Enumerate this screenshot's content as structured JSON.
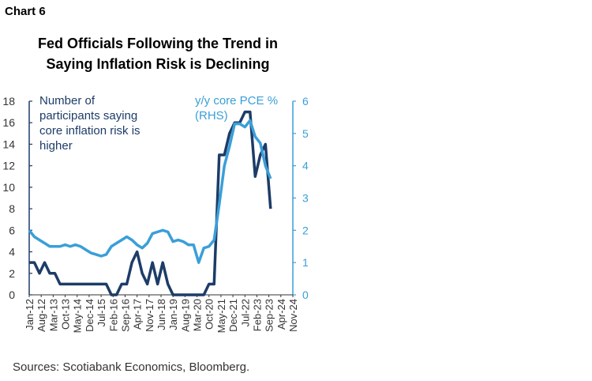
{
  "chart_data": {
    "type": "line",
    "label": "Chart 6",
    "title": "Fed Officials Following the Trend in Saying Inflation Risk is Declining",
    "source": "Sources: Scotiabank Economics, Bloomberg.",
    "x": [
      "2012-01",
      "2012-04",
      "2012-07",
      "2012-10",
      "2013-01",
      "2013-04",
      "2013-07",
      "2013-10",
      "2014-01",
      "2014-04",
      "2014-07",
      "2014-10",
      "2015-01",
      "2015-04",
      "2015-07",
      "2015-10",
      "2016-01",
      "2016-04",
      "2016-07",
      "2016-10",
      "2017-01",
      "2017-04",
      "2017-07",
      "2017-10",
      "2018-01",
      "2018-04",
      "2018-07",
      "2018-10",
      "2019-01",
      "2019-04",
      "2019-07",
      "2019-10",
      "2020-01",
      "2020-04",
      "2020-07",
      "2020-10",
      "2021-01",
      "2021-04",
      "2021-07",
      "2021-10",
      "2022-01",
      "2022-04",
      "2022-07",
      "2022-10",
      "2023-01",
      "2023-04",
      "2023-07",
      "2023-10"
    ],
    "series": [
      {
        "name": "Number of participants saying core inflation risk is higher",
        "color": "#1d3c68",
        "values": [
          3,
          3,
          2,
          3,
          2,
          2,
          1,
          1,
          1,
          1,
          1,
          1,
          1,
          1,
          1,
          1,
          0,
          0,
          1,
          1,
          3,
          4,
          2,
          1,
          3,
          1,
          3,
          1,
          0,
          0,
          0,
          0,
          0,
          0,
          0,
          1,
          1,
          13,
          13,
          15,
          16,
          16,
          17,
          17,
          11,
          13,
          14,
          8
        ]
      },
      {
        "name": "y/y core PCE % (RHS)",
        "color": "#3a9fd8",
        "axis": "y2",
        "values": [
          2.0,
          1.8,
          1.7,
          1.6,
          1.5,
          1.5,
          1.5,
          1.55,
          1.5,
          1.55,
          1.5,
          1.4,
          1.3,
          1.25,
          1.2,
          1.25,
          1.5,
          1.6,
          1.7,
          1.8,
          1.7,
          1.55,
          1.45,
          1.6,
          1.9,
          1.95,
          2.0,
          1.95,
          1.65,
          1.7,
          1.65,
          1.55,
          1.55,
          1.0,
          1.45,
          1.5,
          1.7,
          2.8,
          4.0,
          4.6,
          5.3,
          5.3,
          5.2,
          5.4,
          4.9,
          4.7,
          4.0,
          3.6
        ]
      }
    ],
    "xlim": [
      "2012-01",
      "2024-11"
    ],
    "xticks": [
      {
        "value": "2012-01",
        "label": "Jan-12"
      },
      {
        "value": "2012-08",
        "label": "Aug-12"
      },
      {
        "value": "2013-03",
        "label": "Mar-13"
      },
      {
        "value": "2013-10",
        "label": "Oct-13"
      },
      {
        "value": "2014-05",
        "label": "May-14"
      },
      {
        "value": "2014-12",
        "label": "Dec-14"
      },
      {
        "value": "2015-07",
        "label": "Jul-15"
      },
      {
        "value": "2016-02",
        "label": "Feb-16"
      },
      {
        "value": "2016-09",
        "label": "Sep-16"
      },
      {
        "value": "2017-04",
        "label": "Apr-17"
      },
      {
        "value": "2017-11",
        "label": "Nov-17"
      },
      {
        "value": "2018-06",
        "label": "Jun-18"
      },
      {
        "value": "2019-01",
        "label": "Jan-19"
      },
      {
        "value": "2019-08",
        "label": "Aug-19"
      },
      {
        "value": "2020-03",
        "label": "Mar-20"
      },
      {
        "value": "2020-10",
        "label": "Oct-20"
      },
      {
        "value": "2021-05",
        "label": "May-21"
      },
      {
        "value": "2021-12",
        "label": "Dec-21"
      },
      {
        "value": "2022-07",
        "label": "Jul-22"
      },
      {
        "value": "2023-02",
        "label": "Feb-23"
      },
      {
        "value": "2023-09",
        "label": "Sep-23"
      },
      {
        "value": "2024-04",
        "label": "Apr-24"
      },
      {
        "value": "2024-11",
        "label": "Nov-24"
      }
    ],
    "ylim": [
      0,
      18
    ],
    "yticks": [
      0,
      2,
      4,
      6,
      8,
      10,
      12,
      14,
      16,
      18
    ],
    "y2lim": [
      0,
      6
    ],
    "y2ticks": [
      0,
      1,
      2,
      3,
      4,
      5,
      6
    ]
  }
}
